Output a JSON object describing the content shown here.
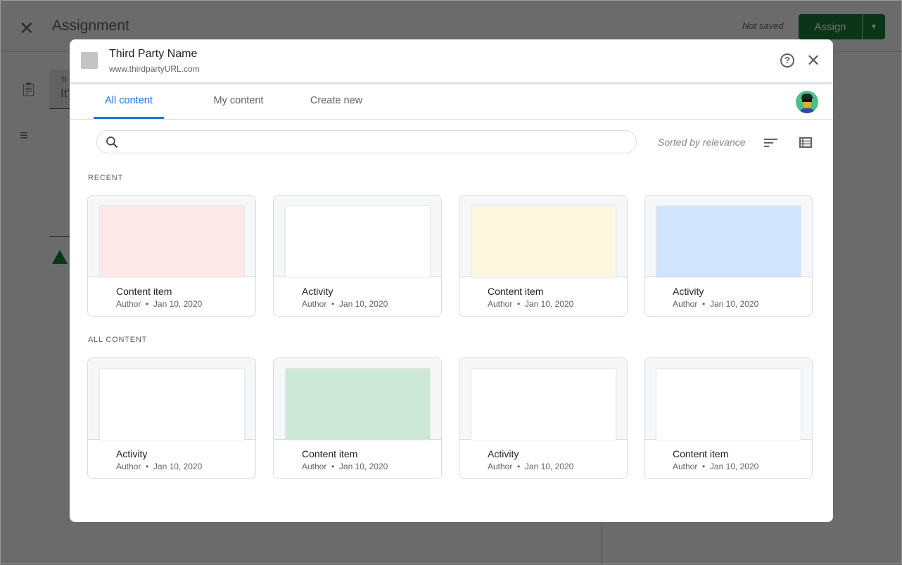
{
  "background": {
    "title": "Assignment",
    "status": "Not saved",
    "assign_label": "Assign",
    "field_label": "Ti",
    "field_value": "It'"
  },
  "modal": {
    "name": "Third Party Name",
    "url": "www.thirdpartyURL.com",
    "tabs": [
      {
        "label": "All content",
        "active": true
      },
      {
        "label": "My content"
      },
      {
        "label": "Create new"
      }
    ],
    "search": {
      "placeholder": "",
      "value": ""
    },
    "sort_label": "Sorted by relevance",
    "sections": [
      {
        "title": "RECENT",
        "items": [
          {
            "title": "Content item",
            "author": "Author",
            "date": "Jan 10, 2020",
            "color": "#fce8e6"
          },
          {
            "title": "Activity",
            "author": "Author",
            "date": "Jan 10, 2020",
            "color": "#ffffff"
          },
          {
            "title": "Content item",
            "author": "Author",
            "date": "Jan 10, 2020",
            "color": "#fef7e0"
          },
          {
            "title": "Activity",
            "author": "Author",
            "date": "Jan 10, 2020",
            "color": "#d2e3fc"
          }
        ]
      },
      {
        "title": "ALL CONTENT",
        "items": [
          {
            "title": "Activity",
            "author": "Author",
            "date": "Jan 10, 2020",
            "color": "#ffffff"
          },
          {
            "title": "Content item",
            "author": "Author",
            "date": "Jan 10, 2020",
            "color": "#cee8d8"
          },
          {
            "title": "Activity",
            "author": "Author",
            "date": "Jan 10, 2020",
            "color": "#ffffff"
          },
          {
            "title": "Content item",
            "author": "Author",
            "date": "Jan 10, 2020",
            "color": "#ffffff"
          }
        ]
      }
    ]
  },
  "colors": {
    "accent": "#1a73e8",
    "assign_button": "#0b3518"
  }
}
